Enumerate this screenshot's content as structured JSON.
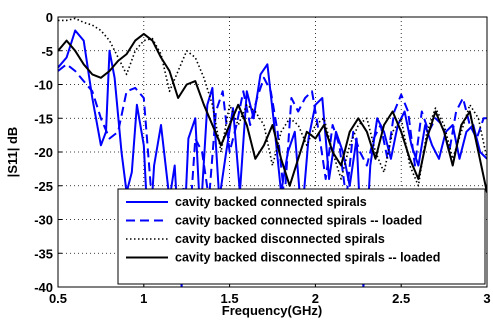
{
  "chart_data": {
    "type": "line",
    "title": "",
    "xlabel": "Frequency(GHz)",
    "ylabel": "|S11| dB",
    "xlim": [
      0.5,
      3
    ],
    "ylim": [
      -40,
      0
    ],
    "xticks": [
      0.5,
      1,
      1.5,
      2,
      2.5,
      3
    ],
    "xtick_labels": [
      "0.5",
      "1",
      "1.5",
      "2",
      "2.5",
      "3"
    ],
    "yticks": [
      0,
      -5,
      -10,
      -15,
      -20,
      -25,
      -30,
      -35,
      -40
    ],
    "ytick_labels": [
      "0",
      "-5",
      "-10",
      "-15",
      "-20",
      "-25",
      "-30",
      "-35",
      "-40"
    ],
    "grid": true,
    "legend_position": "bottom-right",
    "series": [
      {
        "name": "cavity backed connected spirals",
        "color": "#0000ff",
        "style": "solid",
        "points": [
          [
            0.5,
            -7.5
          ],
          [
            0.55,
            -6
          ],
          [
            0.6,
            -2
          ],
          [
            0.65,
            -3.5
          ],
          [
            0.7,
            -12
          ],
          [
            0.75,
            -19
          ],
          [
            0.78,
            -17
          ],
          [
            0.8,
            -5
          ],
          [
            0.83,
            -9
          ],
          [
            0.87,
            -20
          ],
          [
            0.9,
            -26
          ],
          [
            0.93,
            -23
          ],
          [
            0.96,
            -13
          ],
          [
            1.0,
            -19
          ],
          [
            1.03,
            -34
          ],
          [
            1.06,
            -22
          ],
          [
            1.1,
            -16
          ],
          [
            1.15,
            -27
          ],
          [
            1.18,
            -22
          ],
          [
            1.22,
            -40
          ],
          [
            1.26,
            -18
          ],
          [
            1.3,
            -15
          ],
          [
            1.33,
            -30
          ],
          [
            1.37,
            -13
          ],
          [
            1.4,
            -10.5
          ],
          [
            1.44,
            -27
          ],
          [
            1.48,
            -20
          ],
          [
            1.52,
            -13.5
          ],
          [
            1.56,
            -26
          ],
          [
            1.6,
            -11
          ],
          [
            1.64,
            -15
          ],
          [
            1.68,
            -8.5
          ],
          [
            1.72,
            -7
          ],
          [
            1.76,
            -16
          ],
          [
            1.8,
            -26
          ],
          [
            1.84,
            -20
          ],
          [
            1.88,
            -17
          ],
          [
            1.92,
            -30
          ],
          [
            1.96,
            -18
          ],
          [
            2.0,
            -13
          ],
          [
            2.04,
            -12
          ],
          [
            2.08,
            -24
          ],
          [
            2.12,
            -17
          ],
          [
            2.16,
            -20
          ],
          [
            2.2,
            -25
          ],
          [
            2.24,
            -18
          ],
          [
            2.28,
            -40
          ],
          [
            2.32,
            -22
          ],
          [
            2.36,
            -15
          ],
          [
            2.4,
            -17
          ],
          [
            2.44,
            -21
          ],
          [
            2.48,
            -16
          ],
          [
            2.52,
            -14
          ],
          [
            2.56,
            -19
          ],
          [
            2.6,
            -22
          ],
          [
            2.64,
            -16
          ],
          [
            2.68,
            -19
          ],
          [
            2.72,
            -21
          ],
          [
            2.76,
            -17
          ],
          [
            2.8,
            -16
          ],
          [
            2.84,
            -21
          ],
          [
            2.88,
            -17
          ],
          [
            2.92,
            -16
          ],
          [
            2.96,
            -20
          ],
          [
            3.0,
            -21
          ]
        ]
      },
      {
        "name": "cavity backed connected spirals -- loaded",
        "color": "#0000ff",
        "style": "dashed",
        "points": [
          [
            0.5,
            -8
          ],
          [
            0.55,
            -7
          ],
          [
            0.6,
            -8
          ],
          [
            0.65,
            -9.5
          ],
          [
            0.7,
            -11
          ],
          [
            0.75,
            -15
          ],
          [
            0.8,
            -18
          ],
          [
            0.85,
            -17
          ],
          [
            0.9,
            -11
          ],
          [
            0.95,
            -10.5
          ],
          [
            1.0,
            -12
          ],
          [
            1.04,
            -25
          ],
          [
            1.08,
            -33
          ],
          [
            1.12,
            -28
          ],
          [
            1.16,
            -29
          ],
          [
            1.2,
            -30
          ],
          [
            1.23,
            -25
          ],
          [
            1.26,
            -33
          ],
          [
            1.3,
            -18
          ],
          [
            1.34,
            -20
          ],
          [
            1.38,
            -27
          ],
          [
            1.42,
            -14
          ],
          [
            1.46,
            -11
          ],
          [
            1.5,
            -20
          ],
          [
            1.54,
            -16
          ],
          [
            1.58,
            -11
          ],
          [
            1.62,
            -16
          ],
          [
            1.66,
            -12
          ],
          [
            1.7,
            -9
          ],
          [
            1.74,
            -11
          ],
          [
            1.78,
            -17
          ],
          [
            1.82,
            -27
          ],
          [
            1.86,
            -12
          ],
          [
            1.9,
            -14
          ],
          [
            1.94,
            -12
          ],
          [
            1.98,
            -11
          ],
          [
            2.02,
            -17
          ],
          [
            2.06,
            -24
          ],
          [
            2.1,
            -16
          ],
          [
            2.14,
            -19
          ],
          [
            2.18,
            -27
          ],
          [
            2.22,
            -17
          ],
          [
            2.26,
            -20
          ],
          [
            2.3,
            -22
          ],
          [
            2.34,
            -18
          ],
          [
            2.38,
            -16
          ],
          [
            2.42,
            -21
          ],
          [
            2.46,
            -14
          ],
          [
            2.5,
            -11.5
          ],
          [
            2.54,
            -14
          ],
          [
            2.58,
            -22
          ],
          [
            2.62,
            -14
          ],
          [
            2.66,
            -17
          ],
          [
            2.7,
            -15
          ],
          [
            2.74,
            -16
          ],
          [
            2.78,
            -20
          ],
          [
            2.82,
            -14
          ],
          [
            2.86,
            -12
          ],
          [
            2.9,
            -16
          ],
          [
            2.94,
            -18
          ],
          [
            2.98,
            -15
          ],
          [
            3.0,
            -15
          ]
        ]
      },
      {
        "name": "cavity backed disconnected spirals",
        "color": "#000000",
        "style": "dotted",
        "points": [
          [
            0.5,
            -0.5
          ],
          [
            0.55,
            -0.5
          ],
          [
            0.6,
            -0.2
          ],
          [
            0.65,
            -0.8
          ],
          [
            0.7,
            -1.2
          ],
          [
            0.75,
            -2
          ],
          [
            0.8,
            -3.5
          ],
          [
            0.85,
            -6
          ],
          [
            0.9,
            -8.5
          ],
          [
            0.95,
            -5
          ],
          [
            1.0,
            -3.5
          ],
          [
            1.05,
            -3.2
          ],
          [
            1.1,
            -5.5
          ],
          [
            1.15,
            -11
          ],
          [
            1.2,
            -8
          ],
          [
            1.25,
            -5
          ],
          [
            1.3,
            -6
          ],
          [
            1.35,
            -9
          ],
          [
            1.4,
            -13
          ],
          [
            1.45,
            -20
          ],
          [
            1.5,
            -13
          ],
          [
            1.55,
            -16
          ],
          [
            1.6,
            -13
          ],
          [
            1.65,
            -14
          ],
          [
            1.7,
            -16
          ],
          [
            1.75,
            -22
          ],
          [
            1.8,
            -17
          ],
          [
            1.85,
            -15
          ],
          [
            1.9,
            -16
          ],
          [
            1.95,
            -19
          ],
          [
            2.0,
            -16
          ],
          [
            2.05,
            -15
          ],
          [
            2.1,
            -20
          ],
          [
            2.15,
            -24
          ],
          [
            2.2,
            -19
          ],
          [
            2.25,
            -16
          ],
          [
            2.3,
            -15
          ],
          [
            2.35,
            -20
          ],
          [
            2.4,
            -23
          ],
          [
            2.45,
            -17
          ],
          [
            2.5,
            -15
          ],
          [
            2.55,
            -22
          ],
          [
            2.6,
            -25
          ],
          [
            2.65,
            -17
          ],
          [
            2.7,
            -13.5
          ],
          [
            2.75,
            -16
          ],
          [
            2.8,
            -21
          ],
          [
            2.85,
            -17
          ],
          [
            2.9,
            -13
          ],
          [
            2.95,
            -15
          ],
          [
            3.0,
            -21
          ]
        ]
      },
      {
        "name": "cavity backed disconnected spirals -- loaded",
        "color": "#000000",
        "style": "solid",
        "points": [
          [
            0.5,
            -5
          ],
          [
            0.55,
            -3.5
          ],
          [
            0.6,
            -5
          ],
          [
            0.65,
            -7
          ],
          [
            0.7,
            -8.5
          ],
          [
            0.75,
            -9
          ],
          [
            0.8,
            -8
          ],
          [
            0.85,
            -6.5
          ],
          [
            0.9,
            -5.5
          ],
          [
            0.95,
            -3.5
          ],
          [
            1.0,
            -2.5
          ],
          [
            1.05,
            -3.5
          ],
          [
            1.1,
            -6
          ],
          [
            1.15,
            -8
          ],
          [
            1.2,
            -12
          ],
          [
            1.25,
            -10
          ],
          [
            1.3,
            -9.5
          ],
          [
            1.35,
            -13
          ],
          [
            1.4,
            -16
          ],
          [
            1.45,
            -19
          ],
          [
            1.5,
            -16
          ],
          [
            1.55,
            -13
          ],
          [
            1.6,
            -16
          ],
          [
            1.65,
            -21
          ],
          [
            1.7,
            -19
          ],
          [
            1.75,
            -16
          ],
          [
            1.8,
            -21
          ],
          [
            1.85,
            -25
          ],
          [
            1.9,
            -21
          ],
          [
            1.95,
            -17
          ],
          [
            2.0,
            -18
          ],
          [
            2.05,
            -16
          ],
          [
            2.1,
            -20
          ],
          [
            2.15,
            -22
          ],
          [
            2.2,
            -17
          ],
          [
            2.25,
            -15
          ],
          [
            2.3,
            -17
          ],
          [
            2.35,
            -21
          ],
          [
            2.4,
            -16
          ],
          [
            2.45,
            -14
          ],
          [
            2.5,
            -17
          ],
          [
            2.55,
            -21
          ],
          [
            2.6,
            -24
          ],
          [
            2.65,
            -18
          ],
          [
            2.7,
            -14
          ],
          [
            2.75,
            -17
          ],
          [
            2.8,
            -22
          ],
          [
            2.85,
            -16
          ],
          [
            2.9,
            -14
          ],
          [
            2.95,
            -20
          ],
          [
            3.0,
            -26
          ]
        ]
      }
    ]
  }
}
